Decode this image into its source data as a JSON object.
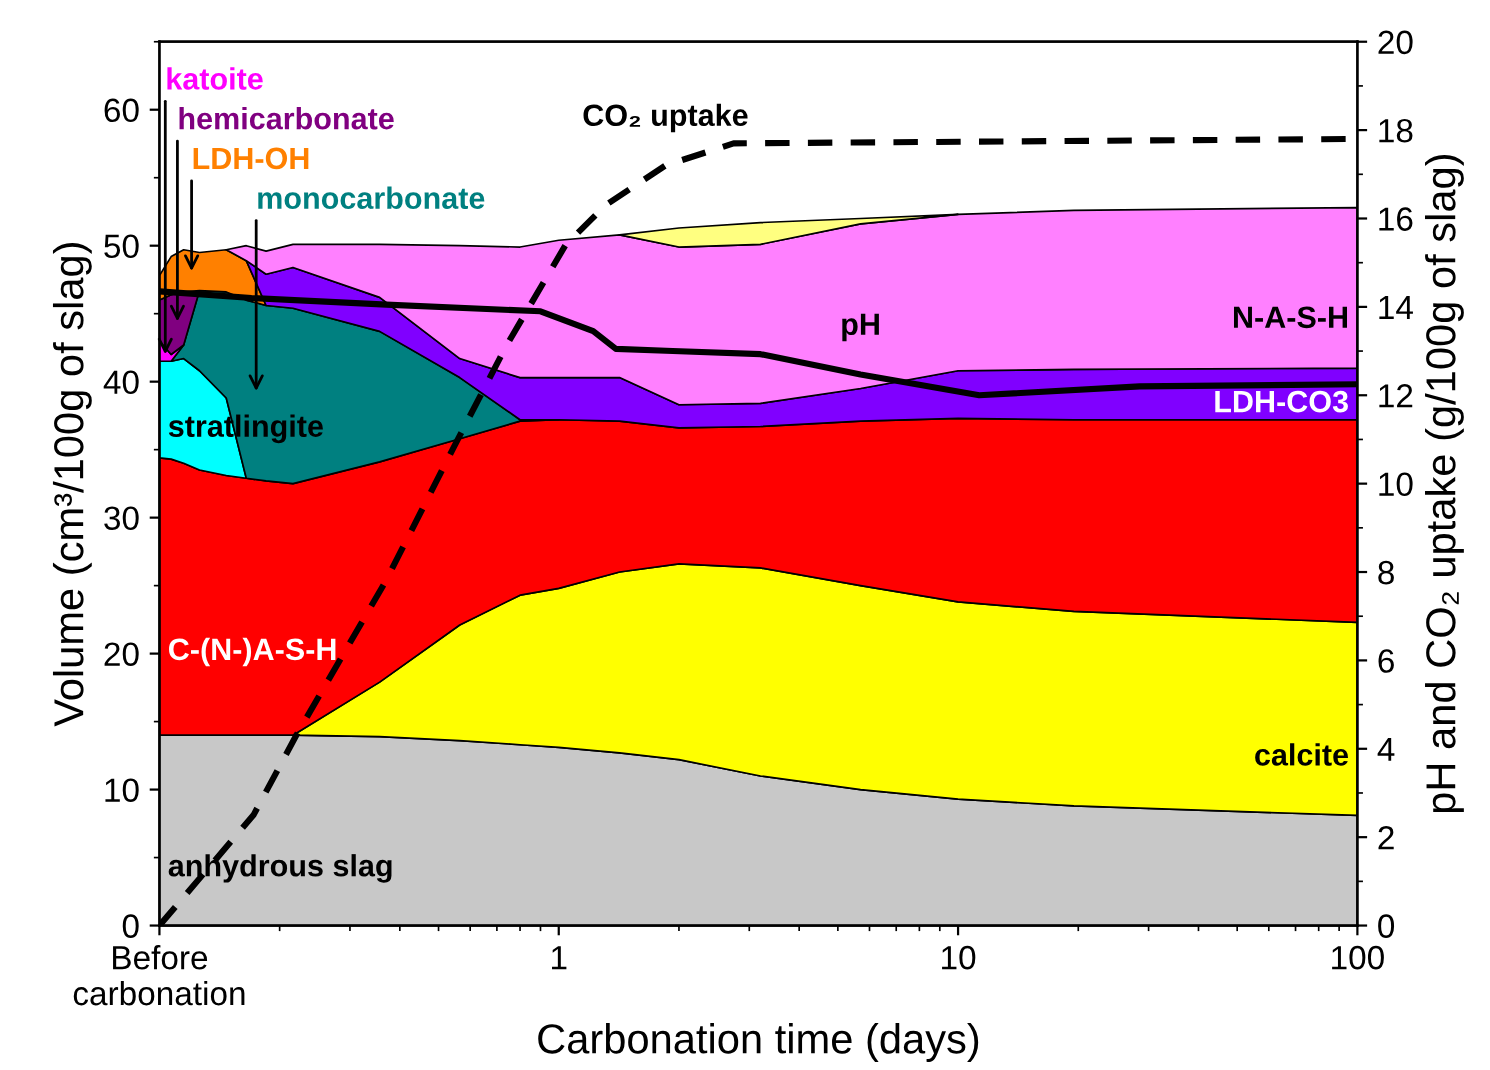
{
  "chart_data": {
    "type": "area",
    "stacked": true,
    "log": "x",
    "xlabel": "Carbonation time (days)",
    "ylabel": "Volume (cm³/100g of slag)",
    "y2label": "pH and CO₂ uptake (g/100g of slag)",
    "x": [
      0.1,
      0.107,
      0.115,
      0.126,
      0.147,
      0.165,
      0.185,
      0.216,
      0.356,
      0.565,
      0.8,
      1.0,
      1.42,
      2.0,
      3.2,
      5.7,
      10,
      19.5,
      100
    ],
    "xlim": [
      0.1,
      100
    ],
    "xticks": [
      {
        "value": 0.1,
        "label": "Before\ncarbonation"
      },
      1,
      10,
      100
    ],
    "ylim": [
      0,
      65
    ],
    "yticks": [
      0,
      10,
      20,
      30,
      40,
      50,
      60
    ],
    "y2lim": [
      0,
      20
    ],
    "y2ticks": [
      0,
      2,
      4,
      6,
      8,
      10,
      12,
      14,
      16,
      18,
      20
    ],
    "series": [
      {
        "name": "anhydrous slag",
        "color": "#c8c8c8",
        "values": [
          14.0,
          14.0,
          14.0,
          14.0,
          14.0,
          14.0,
          14.0,
          14.0,
          13.9,
          13.6,
          13.3,
          13.1,
          12.7,
          12.2,
          11.0,
          10.0,
          9.3,
          8.8,
          8.1
        ]
      },
      {
        "name": "calcite",
        "color": "#ffff00",
        "values": [
          null,
          null,
          null,
          null,
          null,
          null,
          null,
          0,
          4.0,
          8.5,
          11.0,
          11.7,
          13.3,
          14.4,
          15.3,
          15.0,
          14.5,
          14.3,
          14.2
        ]
      },
      {
        "name": "C-(N-)A-S-H",
        "color": "#ff0000",
        "values": [
          20.4,
          20.3,
          20.0,
          19.5,
          19.1,
          18.9,
          18.7,
          18.5,
          16.2,
          13.7,
          12.8,
          12.4,
          11.1,
          10.0,
          10.4,
          12.1,
          13.5,
          14.1,
          14.9
        ]
      },
      {
        "name": "stratlingite",
        "color": "#00ffff",
        "values": [
          7.1,
          7.2,
          7.7,
          7.3,
          5.7,
          0,
          null,
          null,
          null,
          null,
          null,
          null,
          null,
          null,
          null,
          null,
          null,
          null,
          null
        ]
      },
      {
        "name": "monocarbonate",
        "color": "#008080",
        "values": [
          null,
          0,
          1.0,
          5.9,
          7.8,
          13.1,
          12.9,
          12.9,
          9.6,
          4.5,
          0.1,
          0,
          null,
          null,
          null,
          null,
          null,
          null,
          null
        ]
      },
      {
        "name": "katoite",
        "color": "#ff00ff",
        "values": [
          1.5,
          0.5,
          0,
          null,
          null,
          null,
          null,
          null,
          null,
          null,
          null,
          null,
          null,
          null,
          null,
          null,
          null,
          null,
          null
        ]
      },
      {
        "name": "hemicarbonate",
        "color": "#800080",
        "values": [
          3.0,
          4.4,
          3.9,
          0,
          null,
          null,
          null,
          null,
          null,
          null,
          null,
          null,
          null,
          null,
          null,
          null,
          null,
          null,
          null
        ]
      },
      {
        "name": "LDH-OH",
        "color": "#ff8000",
        "values": [
          1.8,
          2.8,
          3.1,
          2.8,
          3.1,
          2.9,
          0,
          null,
          null,
          null,
          null,
          null,
          null,
          null,
          null,
          null,
          null,
          null,
          null
        ]
      },
      {
        "name": "LDH-CO3",
        "color": "#8000ff",
        "values": [
          null,
          null,
          null,
          null,
          null,
          0,
          2.3,
          3.0,
          2.5,
          1.4,
          3.1,
          3.1,
          3.2,
          1.7,
          1.7,
          2.4,
          3.5,
          3.7,
          3.8
        ]
      },
      {
        "name": "N-A-S-H",
        "color": "#ff80ff",
        "values": [
          null,
          null,
          null,
          null,
          0,
          1.1,
          1.7,
          1.7,
          3.9,
          8.3,
          9.6,
          10.1,
          10.5,
          11.6,
          11.7,
          12.1,
          11.5,
          11.7,
          11.8
        ]
      },
      {
        "color": "#ffff80",
        "values": [
          null,
          null,
          null,
          null,
          null,
          null,
          null,
          null,
          null,
          null,
          null,
          null,
          0,
          1.4,
          1.6,
          0.4,
          0,
          null,
          null
        ]
      },
      {
        "name": "pH",
        "type": "line",
        "axis": "y2",
        "color": "#000000",
        "line_style": "solid",
        "x": [
          0.1,
          0.17,
          0.37,
          0.9,
          1.22,
          1.39,
          1.93,
          3.2,
          5.7,
          11.3,
          28.5,
          100
        ],
        "values": [
          14.35,
          14.2,
          14.05,
          13.9,
          13.45,
          13.05,
          13.0,
          12.93,
          12.47,
          12.0,
          12.2,
          12.25
        ]
      },
      {
        "name": "CO₂ uptake",
        "type": "line",
        "axis": "y2",
        "color": "#000000",
        "line_style": "dashed",
        "x": [
          0.1,
          0.172,
          0.22,
          0.369,
          0.544,
          0.737,
          1.04,
          1.31,
          1.85,
          2.74,
          100
        ],
        "values": [
          0,
          2.5,
          4.3,
          7.8,
          10.8,
          13.1,
          15.4,
          16.3,
          17.2,
          17.7,
          17.8
        ]
      }
    ]
  }
}
